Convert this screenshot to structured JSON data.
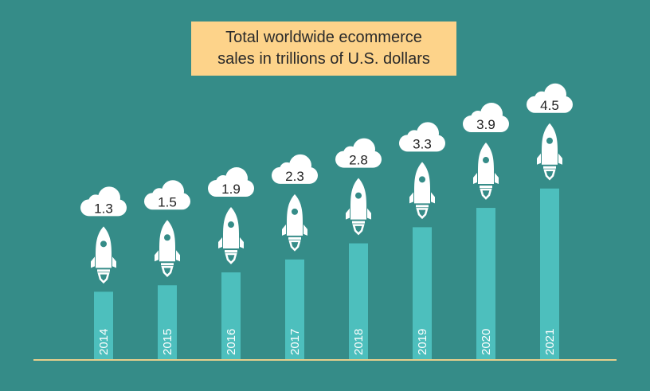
{
  "chart_data": {
    "type": "bar",
    "title_lines": [
      "Total worldwide ecommerce",
      "sales in trillions of U.S. dollars"
    ],
    "categories": [
      "2014",
      "2015",
      "2016",
      "2017",
      "2018",
      "2019",
      "2020",
      "2021"
    ],
    "values": [
      1.3,
      1.5,
      1.9,
      2.3,
      2.8,
      3.3,
      3.9,
      4.5
    ],
    "value_labels": [
      "1.3",
      "1.5",
      "1.9",
      "2.3",
      "2.8",
      "3.3",
      "3.9",
      "4.5"
    ],
    "xlabel": "",
    "ylabel": "",
    "grid": false,
    "colors": {
      "background": "#358c88",
      "bar": "#4dbfbd",
      "title_box": "#fdd38a",
      "baseline": "#e6cf8c",
      "cloud": "#ffffff",
      "rocket": "#ffffff"
    }
  }
}
